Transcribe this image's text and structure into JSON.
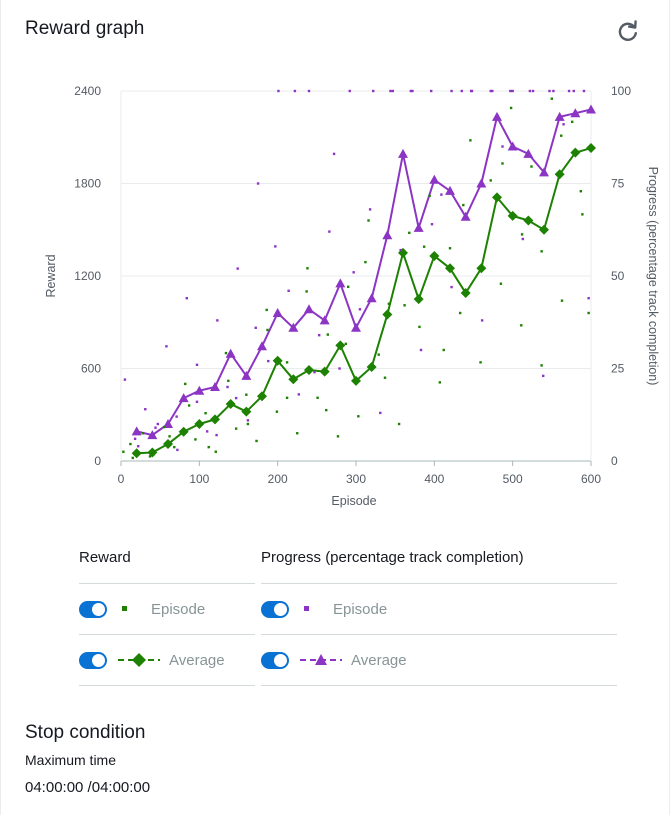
{
  "panel": {
    "title": "Reward graph",
    "refresh_icon": "refresh-icon"
  },
  "colors": {
    "reward": "#1d8102",
    "progress": "#8c35c4",
    "toggle": "#0972d3",
    "grid": "#e9ebed"
  },
  "chart_data": {
    "type": "scatter",
    "xlabel": "Episode",
    "ylabel_left": "Reward",
    "ylabel_right": "Progress (percentage track completion)",
    "xlim": [
      0,
      600
    ],
    "ylim_left": [
      0,
      2400
    ],
    "ylim_right": [
      0,
      100
    ],
    "x_ticks": [
      0,
      100,
      200,
      300,
      400,
      500,
      600
    ],
    "y_ticks_left": [
      0,
      600,
      1200,
      1800,
      2400
    ],
    "y_ticks_right": [
      0,
      25,
      50,
      75,
      100
    ],
    "grid": true,
    "series": [
      {
        "name": "Average",
        "legend_group": "Reward",
        "axis": "left",
        "marker": "diamond",
        "line": "solid",
        "x": [
          20,
          40,
          60,
          80,
          100,
          120,
          140,
          160,
          180,
          200,
          220,
          240,
          260,
          280,
          300,
          320,
          340,
          360,
          380,
          400,
          420,
          440,
          460,
          480,
          500,
          520,
          540,
          560,
          580,
          600
        ],
        "values": [
          50,
          55,
          110,
          190,
          240,
          270,
          370,
          320,
          420,
          650,
          530,
          590,
          580,
          750,
          520,
          610,
          950,
          1350,
          1050,
          1330,
          1250,
          1090,
          1250,
          1710,
          1590,
          1560,
          1500,
          1860,
          2000,
          2030
        ]
      },
      {
        "name": "Average",
        "legend_group": "Progress (percentage track completion)",
        "axis": "right",
        "marker": "triangle",
        "line": "solid",
        "x": [
          20,
          40,
          60,
          80,
          100,
          120,
          140,
          160,
          180,
          200,
          220,
          240,
          260,
          280,
          300,
          320,
          340,
          360,
          380,
          400,
          420,
          440,
          460,
          480,
          500,
          520,
          540,
          560,
          580,
          600
        ],
        "values": [
          8,
          7,
          10,
          17,
          19,
          20,
          29,
          23,
          31,
          40,
          36,
          41,
          38,
          48,
          36,
          44,
          61,
          83,
          63,
          76,
          73,
          66,
          75,
          93,
          85,
          83,
          78,
          93,
          94,
          95
        ]
      },
      {
        "name": "Episode",
        "legend_group": "Reward",
        "axis": "left",
        "marker": "dot",
        "x": [
          3,
          15,
          28,
          41,
          55,
          68,
          82,
          95,
          108,
          121,
          134,
          147,
          160,
          173,
          186,
          199,
          212,
          225,
          238,
          251,
          264,
          277,
          290,
          303,
          316,
          329,
          342,
          355,
          368,
          381,
          394,
          407,
          420,
          433,
          446,
          459,
          472,
          485,
          498,
          511,
          524,
          537,
          550,
          563,
          576,
          589,
          597,
          12,
          37,
          62,
          87,
          112,
          137,
          162,
          187,
          212,
          237,
          262,
          287,
          312,
          337,
          362,
          387,
          412,
          437,
          462,
          487,
          512,
          537,
          562,
          587
        ],
        "values": [
          60,
          20,
          180,
          40,
          220,
          90,
          500,
          140,
          310,
          60,
          700,
          210,
          430,
          130,
          980,
          320,
          640,
          180,
          1250,
          410,
          820,
          160,
          1130,
          290,
          1560,
          690,
          1020,
          240,
          1480,
          870,
          1720,
          510,
          1380,
          960,
          2080,
          640,
          1820,
          1150,
          2290,
          880,
          1910,
          1360,
          2350,
          1040,
          2200,
          1600,
          960,
          110,
          30,
          160,
          360,
          90,
          520,
          240,
          850,
          410,
          1100,
          330,
          760,
          1290,
          540,
          1010,
          1390,
          720,
          1660,
          1250,
          1930,
          1470,
          620,
          2110,
          1750
        ]
      },
      {
        "name": "Episode",
        "legend_group": "Progress (percentage track completion)",
        "axis": "right",
        "marker": "dot",
        "x": [
          5,
          18,
          31,
          44,
          58,
          71,
          84,
          97,
          110,
          123,
          136,
          149,
          162,
          175,
          188,
          201,
          214,
          227,
          240,
          253,
          266,
          279,
          292,
          305,
          318,
          331,
          344,
          357,
          370,
          383,
          396,
          409,
          422,
          435,
          448,
          461,
          474,
          487,
          500,
          513,
          526,
          539,
          552,
          565,
          578,
          591,
          22,
          47,
          72,
          97,
          122,
          147,
          172,
          197,
          222,
          247,
          272,
          297,
          322,
          347,
          372,
          397,
          422,
          447,
          472,
          497,
          522,
          547,
          572,
          597
        ],
        "values": [
          22,
          6,
          14,
          9,
          31,
          12,
          44,
          16,
          8,
          38,
          20,
          52,
          11,
          75,
          27,
          100,
          46,
          18,
          100,
          34,
          62,
          25,
          100,
          41,
          68,
          13,
          100,
          57,
          100,
          30,
          100,
          72,
          47,
          100,
          100,
          38,
          100,
          85,
          100,
          60,
          100,
          23,
          100,
          91,
          100,
          100,
          4,
          10,
          3,
          26,
          7,
          17,
          36,
          58,
          100,
          24,
          83,
          51,
          100,
          100,
          100,
          64,
          100,
          100,
          100,
          100,
          100,
          100,
          100,
          44
        ]
      }
    ]
  },
  "legend": {
    "reward_header": "Reward",
    "progress_header": "Progress (percentage track completion)",
    "reward_episode_label": "Episode",
    "reward_average_label": "Average",
    "progress_episode_label": "Episode",
    "progress_average_label": "Average"
  },
  "stop_condition": {
    "title": "Stop condition",
    "label": "Maximum time",
    "value": "04:00:00 /04:00:00"
  }
}
